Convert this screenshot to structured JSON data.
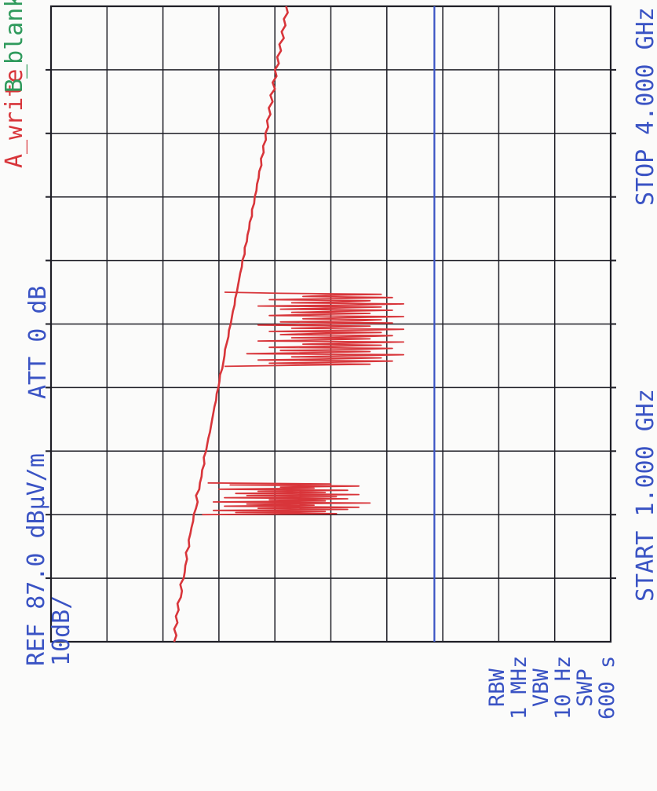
{
  "header": {
    "trace_a": "A_write",
    "trace_b": "B_blank",
    "stop": "STOP 4.000 GHz",
    "att": "ATT 0 dB",
    "start": "START 1.000 GHz"
  },
  "settings": {
    "ref": "REF 87.0 dBμV/m",
    "scale": "10dB/",
    "rbw_label": "RBW",
    "rbw_value": "1 MHz",
    "vbw_label": "VBW",
    "vbw_value": "10 Hz",
    "swp_label": "SWP",
    "swp_value": "600 s"
  },
  "colors": {
    "grid": "#1e1e26",
    "trace_a": "#d8353a",
    "limit_line": "#3a53c4",
    "labels": "#3a53c4"
  },
  "chart_data": {
    "type": "line",
    "orientation": "rotated-90-ccw",
    "title": "",
    "xlabel": "",
    "ylabel": "",
    "xlim": [
      1000,
      4000
    ],
    "ylim": [
      -13,
      87
    ],
    "x_unit": "MHz",
    "y_unit": "dBμV/m",
    "grid": true,
    "grid_divisions": {
      "x": 10,
      "y": 10
    },
    "limit_line": {
      "value": 55.5
    },
    "series": [
      {
        "values_x": [
          1000,
          1030,
          1060,
          1090,
          1120,
          1150,
          1180,
          1210,
          1240,
          1270,
          1300,
          1330,
          1360,
          1390,
          1420,
          1450,
          1480,
          1510,
          1540,
          1570,
          1600,
          1630,
          1660,
          1690,
          1720,
          1750,
          1780,
          1810,
          1840,
          1870,
          1900,
          1930,
          1960,
          1990,
          2020,
          2050,
          2080,
          2110,
          2140,
          2170,
          2200,
          2230,
          2260,
          2290,
          2320,
          2350,
          2380,
          2410,
          2440,
          2470,
          2500,
          2530,
          2560,
          2590,
          2620,
          2650,
          2680,
          2710,
          2740,
          2770,
          2800,
          2830,
          2860,
          2890,
          2920,
          2950,
          2980,
          3010,
          3040,
          3070,
          3100,
          3130,
          3160,
          3190,
          3220,
          3250,
          3280,
          3310,
          3340,
          3370,
          3400,
          3430,
          3460,
          3490,
          3520,
          3550,
          3580,
          3610,
          3640,
          3670,
          3700,
          3730,
          3760,
          3790,
          3820,
          3850,
          3880,
          3910,
          3940,
          3970,
          4000
        ],
        "values_y": [
          9.0,
          9.4,
          9.0,
          9.6,
          9.3,
          9.8,
          9.6,
          10.2,
          10.4,
          10.1,
          10.7,
          10.9,
          11.0,
          11.3,
          11.1,
          11.7,
          11.6,
          11.9,
          12.1,
          12.4,
          12.5,
          12.9,
          13.2,
          12.9,
          13.5,
          13.6,
          13.9,
          14.0,
          14.4,
          14.3,
          14.7,
          14.9,
          15.1,
          15.4,
          15.6,
          15.8,
          16.0,
          16.2,
          16.5,
          16.6,
          16.9,
          17.1,
          17.2,
          17.6,
          17.8,
          18.0,
          18.1,
          18.4,
          18.7,
          18.8,
          19.1,
          19.3,
          19.5,
          19.8,
          19.9,
          20.2,
          20.4,
          20.6,
          20.8,
          21.1,
          21.2,
          21.6,
          21.6,
          22.0,
          22.1,
          22.4,
          22.5,
          22.9,
          22.9,
          23.3,
          23.4,
          23.7,
          23.8,
          24.1,
          24.2,
          24.6,
          24.5,
          25.0,
          24.9,
          25.4,
          25.3,
          25.8,
          25.6,
          26.2,
          25.9,
          26.6,
          26.2,
          27.0,
          26.6,
          27.3,
          27.0,
          27.7,
          27.4,
          28.1,
          27.8,
          28.6,
          28.2,
          28.9,
          28.6,
          29.3,
          29.0
        ]
      },
      {
        "values_x": [
          1600,
          1605,
          1610,
          1615,
          1620,
          1625,
          1630,
          1635,
          1640,
          1645,
          1650,
          1655,
          1660,
          1665,
          1670,
          1675,
          1680,
          1685,
          1690,
          1695,
          1700,
          1705,
          1710,
          1715,
          1720,
          1725,
          1730,
          1735,
          1740,
          1745,
          1750
        ],
        "values_y": [
          14,
          38,
          20,
          36,
          16,
          40,
          24,
          42,
          18,
          34,
          22,
          44,
          16,
          36,
          26,
          40,
          18,
          38,
          22,
          42,
          20,
          36,
          24,
          40,
          17,
          34,
          28,
          42,
          19,
          37,
          15
        ]
      },
      {
        "values_x": [
          2300,
          2305,
          2310,
          2315,
          2320,
          2325,
          2330,
          2335,
          2340,
          2345,
          2350,
          2355,
          2360,
          2365,
          2370,
          2375,
          2380,
          2385,
          2390,
          2395,
          2400,
          2405,
          2410,
          2415,
          2420,
          2425,
          2430,
          2435,
          2440,
          2445,
          2450,
          2455,
          2460,
          2465,
          2470,
          2475,
          2480,
          2485,
          2490,
          2495,
          2500,
          2505,
          2510,
          2515,
          2520,
          2525,
          2530,
          2535,
          2540,
          2545,
          2550,
          2555,
          2560,
          2565,
          2570,
          2575,
          2580,
          2585,
          2590,
          2595,
          2600,
          2605,
          2610,
          2615,
          2620,
          2625,
          2630,
          2635,
          2640,
          2645,
          2650
        ],
        "values_y": [
          18,
          30,
          44,
          26,
          38,
          48,
          24,
          36,
          46,
          30,
          40,
          50,
          22,
          34,
          44,
          28,
          42,
          48,
          26,
          38,
          46,
          32,
          40,
          50,
          24,
          36,
          44,
          30,
          42,
          48,
          28,
          34,
          46,
          26,
          40,
          50,
          30,
          38,
          44,
          24,
          36,
          48,
          28,
          42,
          46,
          32,
          40,
          50,
          26,
          34,
          44,
          30,
          38,
          48,
          28,
          36,
          46,
          24,
          42,
          50,
          30,
          40,
          44,
          26,
          38,
          48,
          32,
          36,
          46,
          28,
          18
        ]
      }
    ]
  }
}
